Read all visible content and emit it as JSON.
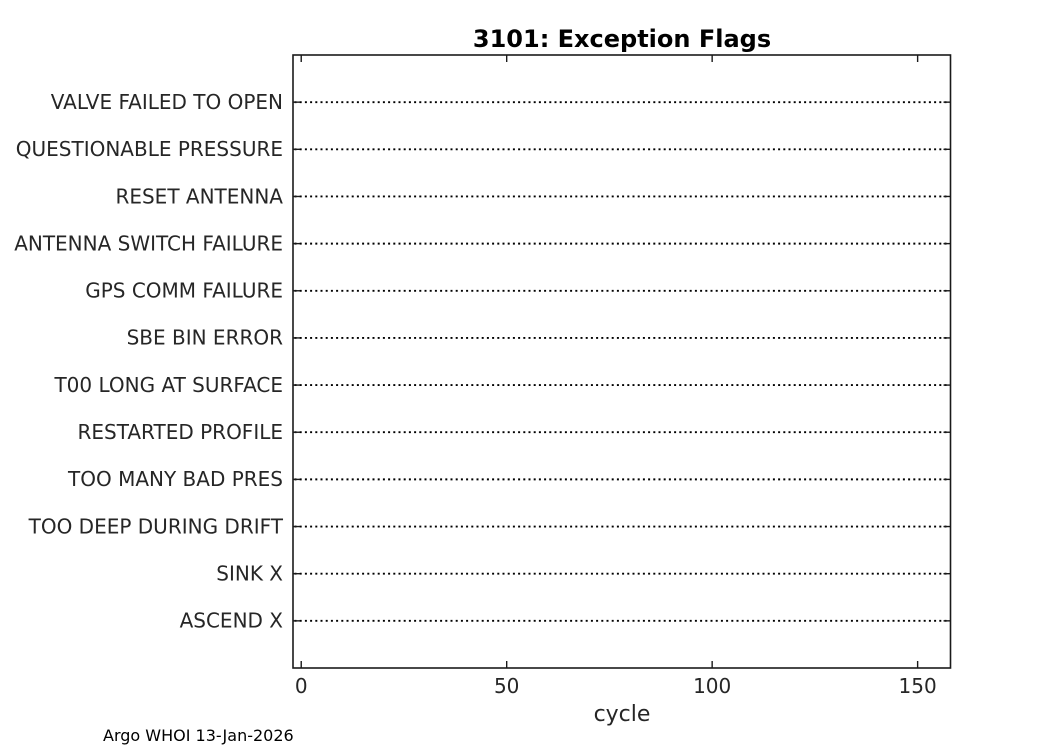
{
  "figure": {
    "background": "#ffffff"
  },
  "chart_data": {
    "type": "scatter",
    "title": "3101: Exception Flags",
    "xlabel": "cycle",
    "ylabel": "",
    "categories_top_to_bottom": [
      "VALVE FAILED TO OPEN",
      "QUESTIONABLE PRESSURE",
      "RESET ANTENNA",
      "ANTENNA SWITCH FAILURE",
      "GPS COMM FAILURE",
      "SBE BIN ERROR",
      "T00 LONG AT SURFACE",
      "RESTARTED PROFILE",
      "TOO MANY BAD PRES",
      "TOO DEEP DURING DRIFT",
      "SINK X",
      "ASCEND X"
    ],
    "series": [],
    "plot_area_content": "empty - no data markers plotted, only dotted category gridlines",
    "xlim": [
      -2,
      158
    ],
    "xticks": [
      0,
      50,
      100,
      150
    ],
    "xtick_labels": [
      "0",
      "50",
      "100",
      "150"
    ],
    "grid": {
      "horizontal": "dotted black line at every category row",
      "vertical": "none"
    },
    "legend": "none",
    "box": true,
    "tick_direction": "in",
    "annotation_bottom_left": "Argo WHOI 13-Jan-2026"
  },
  "colors": {
    "background": "#ffffff",
    "axis": "#1a1a1a",
    "grid_line": "#000000",
    "tick_text": "#262626",
    "title_text": "#000000"
  }
}
